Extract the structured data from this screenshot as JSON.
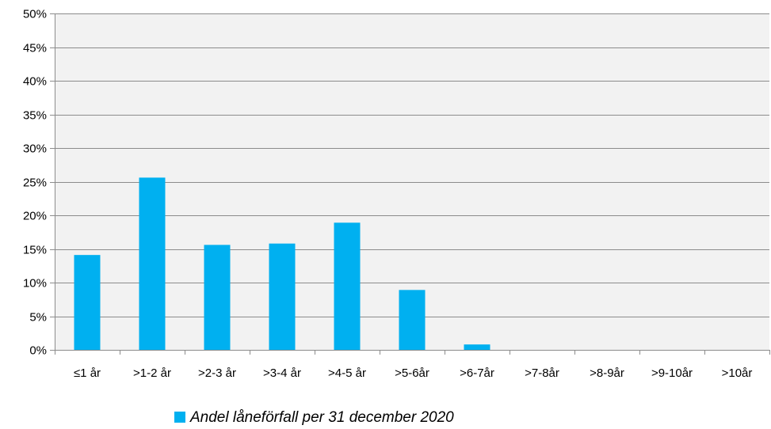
{
  "chart_data": {
    "type": "bar",
    "categories": [
      "≤1 år",
      ">1-2 år",
      ">2-3 år",
      ">3-4 år",
      ">4-5 år",
      ">5-6år",
      ">6-7år",
      ">7-8år",
      ">8-9år",
      ">9-10år",
      ">10år"
    ],
    "series": [
      {
        "name": "Andel låneförfall per 31 december 2020",
        "values": [
          14.1,
          25.6,
          15.6,
          15.8,
          18.9,
          8.9,
          0.8,
          0,
          0,
          0,
          0
        ],
        "color": "#00b0f0"
      }
    ],
    "ylim": [
      0,
      50
    ],
    "ytick_step": 5,
    "ytick_suffix": "%",
    "grid": true,
    "legend_position": "bottom-center",
    "colors": {
      "plot_background": "#f2f2f2",
      "gridline": "#8c8c8c",
      "axis": "#8c8c8c"
    }
  }
}
